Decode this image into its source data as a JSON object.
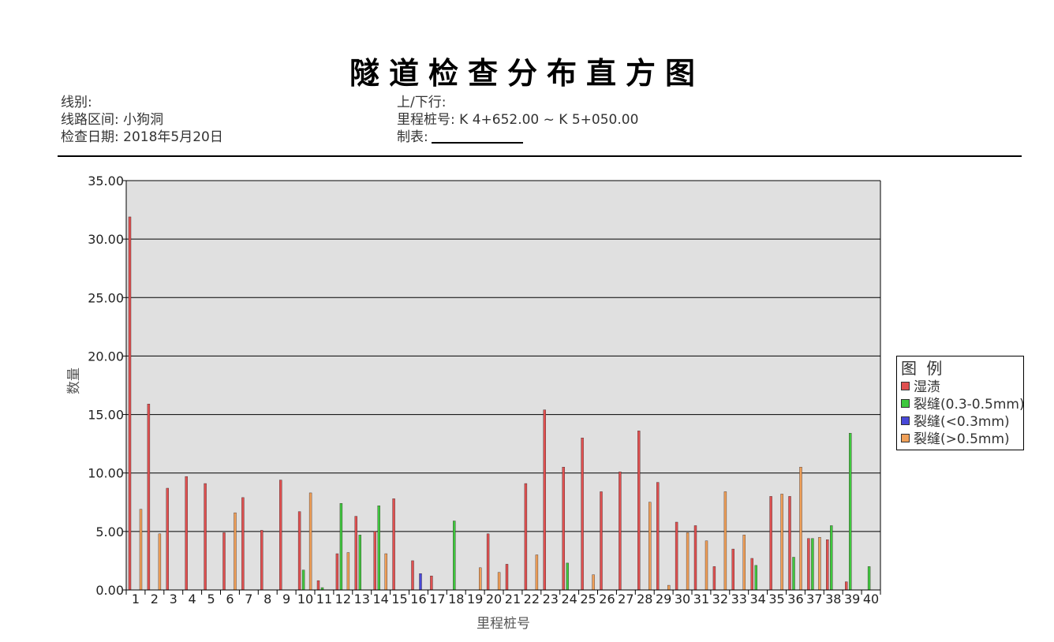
{
  "header": {
    "title": "隧道检查分布直方图",
    "line_label": "线别:",
    "line_value": "",
    "section_label": "线路区间:",
    "section_value": "小狗洞",
    "date_label": "检查日期:",
    "date_value": "2018年5月20日",
    "direction_label": "上/下行:",
    "direction_value": "",
    "mileage_label": "里程桩号:",
    "mileage_value": "K 4+652.00 ~ K 5+050.00",
    "maker_label": "制表:"
  },
  "legend": {
    "title": "图 例",
    "items": [
      {
        "label": "湿渍",
        "color": "#e05050"
      },
      {
        "label": "裂缝(0.3-0.5mm)",
        "color": "#3ec83e"
      },
      {
        "label": "裂缝(<0.3mm)",
        "color": "#4848d8"
      },
      {
        "label": "裂缝(>0.5mm)",
        "color": "#f0a058"
      }
    ]
  },
  "chart_data": {
    "type": "bar",
    "xlabel": "里程桩号",
    "ylabel": "数量",
    "ylim": [
      0,
      35
    ],
    "yticks": [
      "0.00",
      "5.00",
      "10.00",
      "15.00",
      "20.00",
      "25.00",
      "30.00",
      "35.00"
    ],
    "grid": true,
    "legend_position": "right",
    "plot_background": "#e0e0e0",
    "categories": [
      "1",
      "2",
      "3",
      "4",
      "5",
      "6",
      "7",
      "8",
      "9",
      "10",
      "11",
      "12",
      "13",
      "14",
      "15",
      "16",
      "17",
      "18",
      "19",
      "20",
      "21",
      "22",
      "23",
      "24",
      "25",
      "26",
      "27",
      "28",
      "29",
      "30",
      "31",
      "32",
      "33",
      "34",
      "35",
      "36",
      "37",
      "38",
      "39",
      "40"
    ],
    "series": [
      {
        "name": "湿渍",
        "color": "#e05050",
        "values": [
          31.9,
          15.9,
          8.7,
          9.7,
          9.1,
          4.9,
          7.9,
          5.1,
          9.4,
          6.7,
          0.8,
          3.1,
          6.3,
          5.0,
          7.8,
          2.5,
          1.2,
          0,
          0,
          4.8,
          2.2,
          9.1,
          15.4,
          10.5,
          13.0,
          8.4,
          10.1,
          13.6,
          9.2,
          5.8,
          5.5,
          2.0,
          3.5,
          2.7,
          8.0,
          8.0,
          4.4,
          4.3,
          0.7,
          0
        ]
      },
      {
        "name": "裂缝(0.3-0.5mm)",
        "color": "#3ec83e",
        "values": [
          0,
          0,
          0,
          0,
          0,
          0,
          0,
          0,
          0,
          1.7,
          0.2,
          7.4,
          4.7,
          7.2,
          0,
          0,
          0,
          5.9,
          0,
          0,
          0,
          0,
          0,
          2.3,
          0,
          0,
          0,
          0,
          0,
          0,
          0,
          0,
          0,
          2.1,
          0,
          2.8,
          4.4,
          5.5,
          13.4,
          2.0
        ]
      },
      {
        "name": "裂缝(<0.3mm)",
        "color": "#4848d8",
        "values": [
          0,
          0,
          0,
          0,
          0,
          0,
          0,
          0,
          0,
          0,
          0,
          0,
          0,
          0,
          0,
          1.4,
          0,
          0,
          0,
          0,
          0,
          0,
          0,
          0,
          0,
          0,
          0,
          0,
          0,
          0,
          0,
          0,
          0,
          0,
          0,
          0,
          0,
          0,
          0,
          0
        ]
      },
      {
        "name": "裂缝(>0.5mm)",
        "color": "#f0a058",
        "values": [
          6.9,
          4.8,
          0,
          0,
          0,
          6.6,
          0,
          0,
          0,
          8.3,
          0,
          3.2,
          0,
          3.1,
          0,
          0,
          0,
          0,
          1.9,
          1.5,
          0,
          3.0,
          0,
          0,
          1.3,
          0,
          0,
          7.5,
          0.4,
          4.9,
          4.2,
          8.4,
          4.7,
          0,
          8.2,
          10.5,
          4.5,
          0,
          0,
          0
        ]
      }
    ]
  }
}
